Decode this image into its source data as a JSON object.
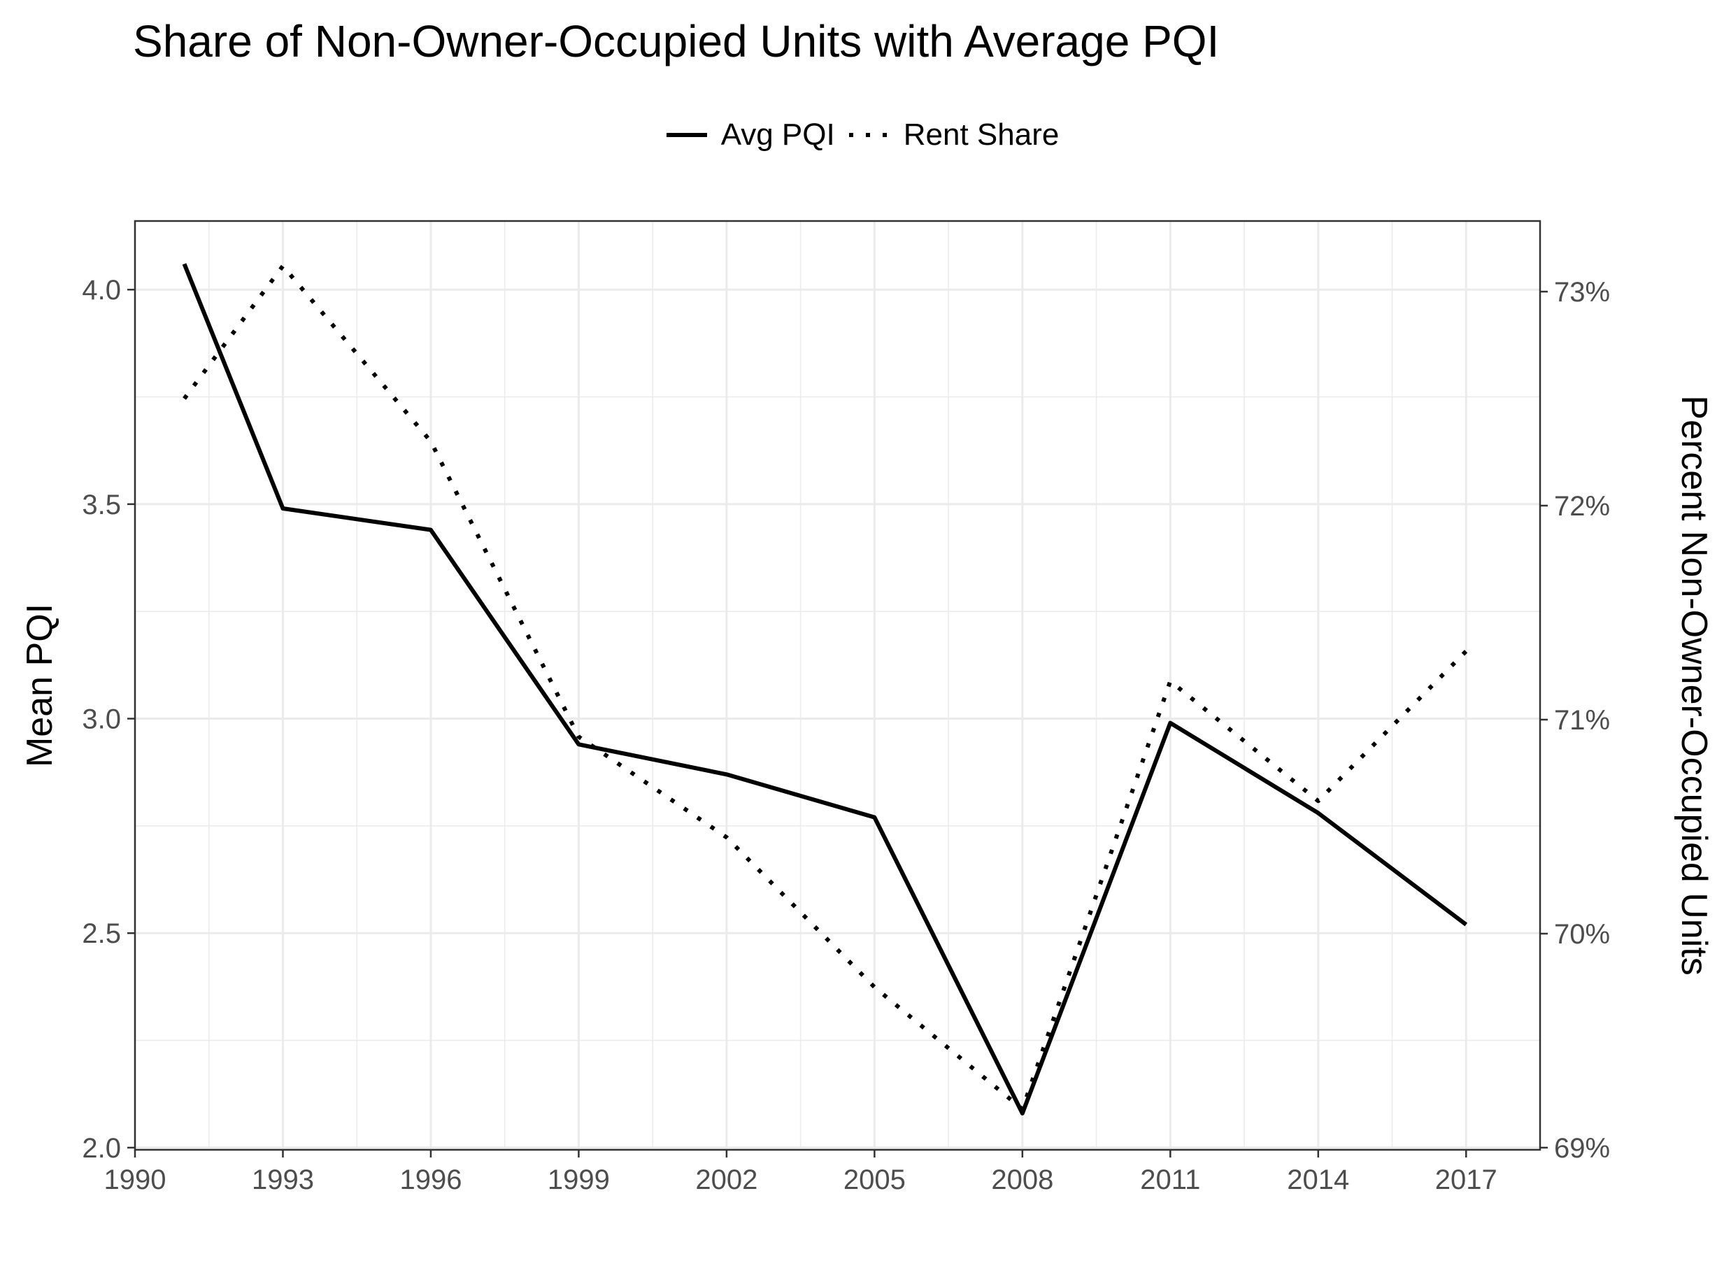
{
  "chart_data": {
    "type": "line",
    "title": "Share of Non-Owner-Occupied Units with Average PQI",
    "xlabel": "",
    "ylabel": "Mean PQI",
    "y2label": "Percent Non-Owner-Occupied Units",
    "x": [
      1991,
      1993,
      1995,
      1996,
      1997,
      1999,
      2002,
      2005,
      2008,
      2011,
      2014,
      2017
    ],
    "xlim": [
      1990,
      2018.5
    ],
    "ylim": [
      1.995,
      4.16
    ],
    "y2lim": [
      68.99,
      73.33
    ],
    "xticks": [
      "1990",
      "1993",
      "1996",
      "1999",
      "2002",
      "2005",
      "2008",
      "2011",
      "2014",
      "2017"
    ],
    "yticks": [
      "2.0",
      "2.5",
      "3.0",
      "3.5",
      "4.0"
    ],
    "y2ticks": [
      "69%",
      "70%",
      "71%",
      "72%",
      "73%"
    ],
    "legend_position": "top",
    "grid": true,
    "series": [
      {
        "name": "Avg PQI",
        "axis": "left",
        "style": "solid",
        "x": [
          1991,
          1993,
          1996,
          1999,
          2002,
          2005,
          2008,
          2011,
          2014,
          2017
        ],
        "values": [
          4.06,
          3.49,
          3.44,
          2.94,
          2.87,
          2.77,
          2.08,
          2.99,
          2.78,
          2.52
        ]
      },
      {
        "name": "Rent Share",
        "axis": "right",
        "style": "dotted",
        "x": [
          1991,
          1993,
          1996,
          1999,
          2002,
          2005,
          2008,
          2011,
          2014,
          2017
        ],
        "values": [
          72.5,
          73.12,
          72.3,
          70.92,
          70.45,
          69.75,
          69.18,
          71.18,
          70.62,
          71.32
        ]
      }
    ]
  }
}
